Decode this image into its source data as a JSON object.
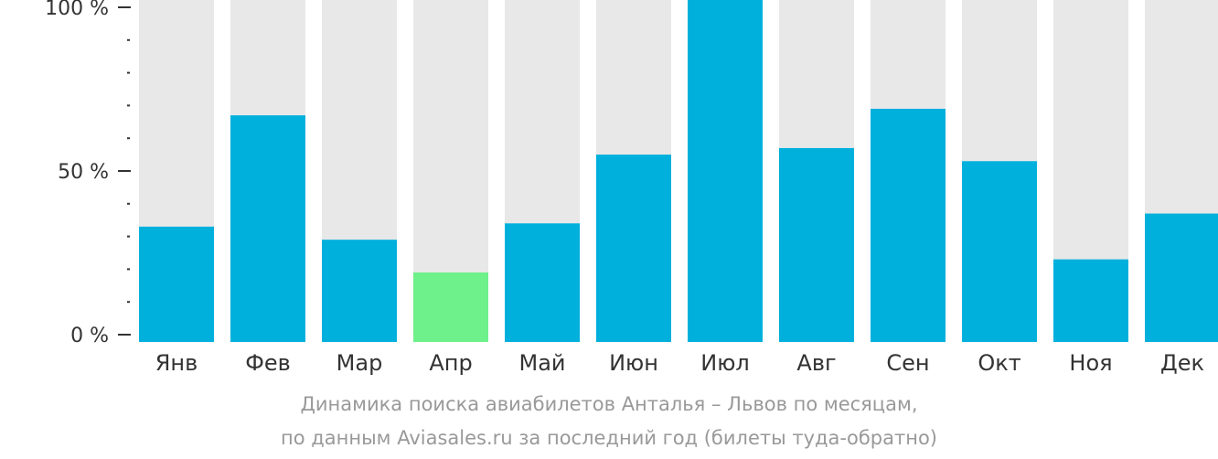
{
  "chart_data": {
    "type": "bar",
    "categories": [
      "Янв",
      "Фев",
      "Мар",
      "Апр",
      "Май",
      "Июн",
      "Июл",
      "Авг",
      "Сен",
      "Окт",
      "Ноя",
      "Дек"
    ],
    "values": [
      33,
      67,
      29,
      19,
      34,
      55,
      100,
      57,
      69,
      53,
      23,
      37
    ],
    "highlight_index": 3,
    "ylim": [
      0,
      100
    ],
    "yticks": [
      {
        "value": 0,
        "label": "0 %"
      },
      {
        "value": 50,
        "label": "50 %"
      },
      {
        "value": 100,
        "label": "100 %"
      }
    ],
    "minor_tick_step": 10,
    "title": "Динамика поиска авиабилетов Анталья – Львов по месяцам,",
    "subtitle": "по данным Aviasales.ru за последний год (билеты туда-обратно)",
    "colors": {
      "bar": "#00b0dc",
      "highlight": "#6ef08a",
      "track": "#e8e8e8",
      "axis": "#333333"
    }
  }
}
